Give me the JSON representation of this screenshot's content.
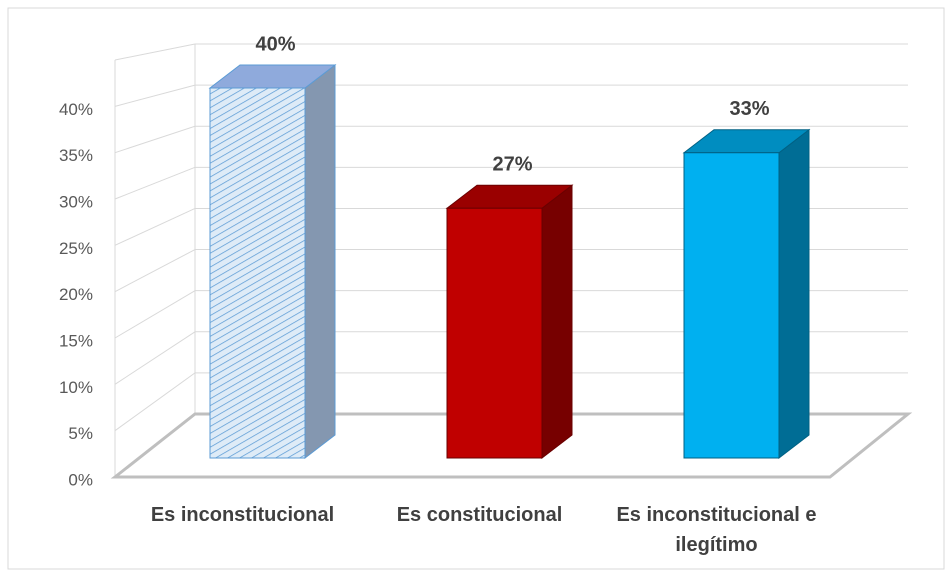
{
  "chart_data": {
    "type": "bar3d",
    "categories": [
      "Es inconstitucional",
      "Es constitucional",
      "Es inconstitucional e ilegítimo"
    ],
    "values": [
      40,
      27,
      33
    ],
    "value_labels": [
      "40%",
      "27%",
      "33%"
    ],
    "colors": [
      "#deebf7",
      "#c00000",
      "#00b0f0"
    ],
    "ylim": [
      0,
      45
    ],
    "yticks": [
      {
        "value": 0,
        "label": "0%"
      },
      {
        "value": 5,
        "label": "5%"
      },
      {
        "value": 10,
        "label": "10%"
      },
      {
        "value": 15,
        "label": "15%"
      },
      {
        "value": 20,
        "label": "20%"
      },
      {
        "value": 25,
        "label": "25%"
      },
      {
        "value": 30,
        "label": "30%"
      },
      {
        "value": 35,
        "label": "35%"
      },
      {
        "value": 40,
        "label": "40%"
      }
    ],
    "grid": true
  }
}
